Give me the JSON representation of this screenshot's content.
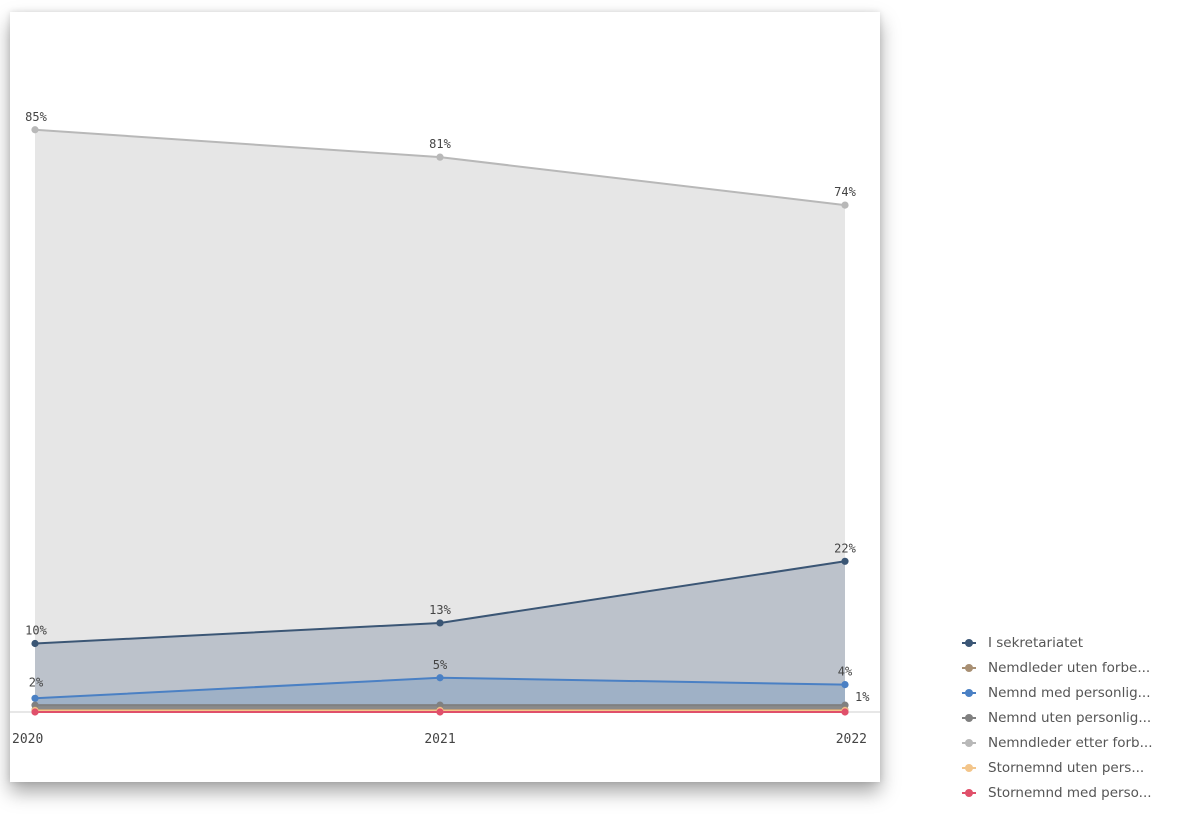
{
  "chart_data": {
    "type": "area",
    "x": [
      "2020",
      "2021",
      "2022"
    ],
    "ylim": [
      0,
      100
    ],
    "series": [
      {
        "name": "I sekretariatet",
        "color": "#3b5675",
        "values": [
          10,
          13,
          22
        ],
        "labels": [
          "10%",
          "13%",
          "22%"
        ]
      },
      {
        "name": "Nemdleder uten forbe...",
        "color": "#a88f73",
        "values": [
          0.3,
          0.3,
          0.3
        ],
        "labels": []
      },
      {
        "name": "Nemnd med personlig...",
        "color": "#4a80c4",
        "values": [
          2,
          5,
          4
        ],
        "labels": [
          "2%",
          "5%",
          "4%"
        ]
      },
      {
        "name": "Nemnd uten personlig...",
        "color": "#808080",
        "values": [
          1,
          1,
          1
        ],
        "labels": [
          "",
          "",
          "1%"
        ]
      },
      {
        "name": "Nemndleder etter forb...",
        "color": "#b8b8b8",
        "values": [
          85,
          81,
          74
        ],
        "labels": [
          "85%",
          "81%",
          "74%"
        ]
      },
      {
        "name": "Stornemnd uten pers...",
        "color": "#f3c58a",
        "values": [
          0.2,
          0.2,
          0.2
        ],
        "labels": []
      },
      {
        "name": "Stornemnd med perso...",
        "color": "#e0506a",
        "values": [
          0,
          0,
          0
        ],
        "labels": []
      }
    ],
    "legend_position": "right-bottom",
    "grid": false
  }
}
